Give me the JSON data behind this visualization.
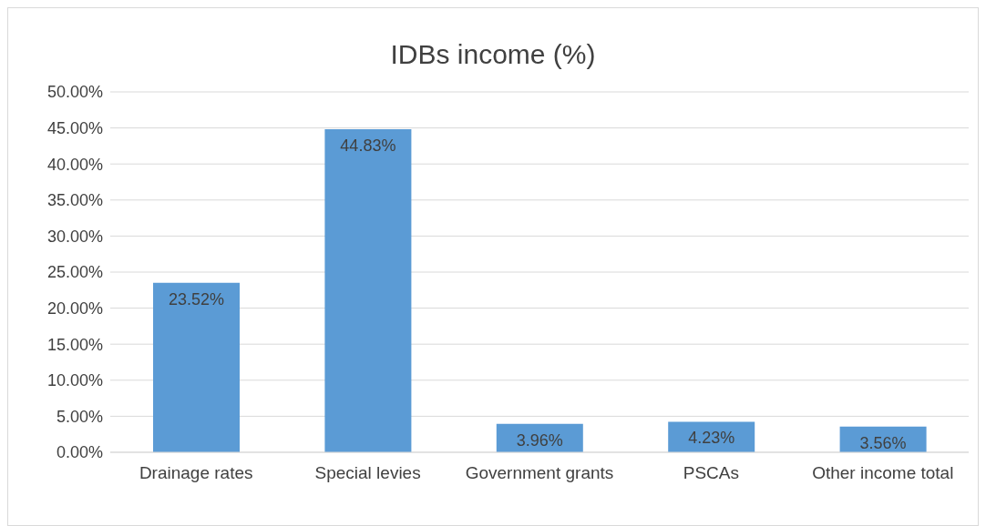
{
  "chart_data": {
    "type": "bar",
    "title": "IDBs income (%)",
    "categories": [
      "Drainage rates",
      "Special levies",
      "Government grants",
      "PSCAs",
      "Other income total"
    ],
    "values": [
      23.52,
      44.83,
      3.96,
      4.23,
      3.56
    ],
    "value_labels": [
      "23.52%",
      "44.83%",
      "3.96%",
      "4.23%",
      "3.56%"
    ],
    "color": "#5b9bd5",
    "ylim": [
      0,
      50
    ],
    "yticks": [
      {
        "value": 0,
        "label": "0.00%"
      },
      {
        "value": 5,
        "label": "5.00%"
      },
      {
        "value": 10,
        "label": "10.00%"
      },
      {
        "value": 15,
        "label": "15.00%"
      },
      {
        "value": 20,
        "label": "20.00%"
      },
      {
        "value": 25,
        "label": "25.00%"
      },
      {
        "value": 30,
        "label": "30.00%"
      },
      {
        "value": 35,
        "label": "35.00%"
      },
      {
        "value": 40,
        "label": "40.00%"
      },
      {
        "value": 45,
        "label": "45.00%"
      },
      {
        "value": 50,
        "label": "50.00%"
      }
    ],
    "grid": "y",
    "legend": false
  }
}
